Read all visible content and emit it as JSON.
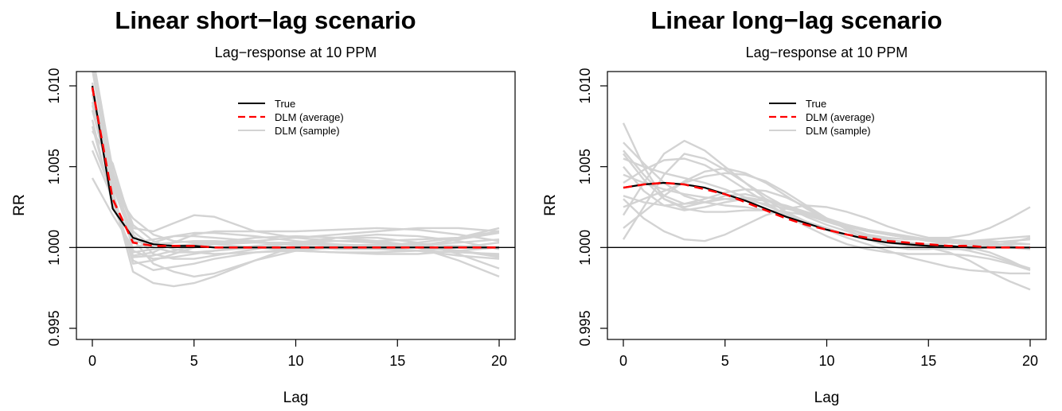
{
  "panels": [
    {
      "title": "Linear short−lag scenario",
      "chart_data": {
        "type": "line",
        "title": "Lag−response at 10 PPM",
        "xlabel": "Lag",
        "ylabel": "RR",
        "xlim": [
          0,
          20
        ],
        "ylim": [
          0.995,
          1.01
        ],
        "xticks": [
          0,
          5,
          10,
          15,
          20
        ],
        "xtick_labels": [
          "0",
          "5",
          "10",
          "15",
          "20"
        ],
        "yticks": [
          0.995,
          1.0,
          1.005,
          1.01
        ],
        "ytick_labels": [
          "0.995",
          "1.000",
          "1.005",
          "1.010"
        ],
        "reference_line": 1.0,
        "legend": {
          "position": "top-center",
          "entries": [
            "True",
            "DLM (average)",
            "DLM (sample)"
          ]
        },
        "colors": {
          "true": "#000000",
          "average": "#ff0000",
          "sample": "#d3d3d3"
        },
        "series": [
          {
            "name": "True",
            "style": "solid",
            "x": [
              0,
              1,
              2,
              3,
              4,
              5,
              6,
              8,
              10,
              12,
              14,
              16,
              18,
              20
            ],
            "y": [
              1.01,
              1.0024,
              1.0006,
              1.0002,
              1.0001,
              1.0001,
              1.0,
              1.0,
              1.0,
              1.0,
              1.0,
              1.0,
              1.0,
              1.0
            ]
          },
          {
            "name": "DLM (average)",
            "style": "dashed",
            "x": [
              0,
              1,
              2,
              3,
              4,
              5,
              6,
              8,
              10,
              12,
              14,
              16,
              18,
              20
            ],
            "y": [
              1.0099,
              1.003,
              1.0003,
              1.0001,
              1.0001,
              1.0001,
              1.0,
              1.0,
              1.0,
              1.0,
              1.0,
              1.0,
              1.0,
              1.0
            ]
          },
          {
            "name": "DLM (sample)",
            "group": true,
            "x": [
              0,
              1,
              2,
              3,
              4,
              5,
              6,
              8,
              10,
              12,
              14,
              16,
              18,
              20
            ],
            "lines": [
              [
                1.0112,
                1.0045,
                1.0012,
                1.001,
                1.0015,
                1.002,
                1.0019,
                1.001,
                1.0006,
                1.0004,
                1.0004,
                1.0005,
                1.0006,
                1.001
              ],
              [
                1.009,
                1.004,
                1.0005,
                0.999,
                0.9985,
                0.9982,
                0.9984,
                0.9992,
                1.0001,
                1.0006,
                1.0006,
                1.0003,
                0.9996,
                0.9987
              ],
              [
                1.0072,
                1.0052,
                1.001,
                1.0,
                0.9997,
                0.9997,
                0.9998,
                1.0,
                1.0,
                1.0,
                1.0001,
                1.0003,
                1.0006,
                1.0012
              ],
              [
                1.0066,
                1.0032,
                0.9985,
                0.9978,
                0.9976,
                0.9978,
                0.9982,
                0.9992,
                0.9998,
                1.0,
                0.9999,
                0.9998,
                0.9997,
                0.9996
              ],
              [
                1.0102,
                1.0028,
                0.9995,
                0.9997,
                1.0003,
                1.0008,
                1.001,
                1.001,
                1.001,
                1.0011,
                1.0012,
                1.0011,
                1.0008,
                1.0004
              ],
              [
                1.0043,
                1.002,
                1.0,
                1.0003,
                1.0007,
                1.0009,
                1.0009,
                1.0007,
                1.0004,
                1.0002,
                1.0,
                0.9998,
                0.9995,
                0.9993
              ],
              [
                1.012,
                1.0048,
                0.9998,
                0.9993,
                0.9994,
                0.9996,
                0.9998,
                1.0001,
                1.0003,
                1.0004,
                1.0003,
                1.0,
                0.9992,
                0.9982
              ],
              [
                1.0085,
                1.0036,
                1.0018,
                1.0008,
                1.0004,
                1.0003,
                1.0003,
                1.0004,
                1.0006,
                1.0008,
                1.001,
                1.0012,
                1.0012,
                1.001
              ],
              [
                1.0095,
                1.003,
                0.9992,
                0.9986,
                0.9988,
                0.999,
                0.9993,
                0.9997,
                0.9998,
                0.9997,
                0.9996,
                0.9996,
                0.9998,
                1.0
              ],
              [
                1.011,
                1.0038,
                1.0004,
                1.0002,
                1.0003,
                1.0004,
                1.0004,
                1.0003,
                1.0002,
                1.0001,
                1.0001,
                1.0002,
                1.0003,
                1.0005
              ],
              [
                1.0079,
                1.0026,
                0.9997,
                0.9999,
                1.0001,
                1.0002,
                1.0002,
                1.0,
                0.9998,
                0.9997,
                0.9997,
                0.9998,
                1.0,
                1.0003
              ],
              [
                1.0098,
                1.0042,
                1.0008,
                0.9996,
                0.9993,
                0.9993,
                0.9995,
                0.9999,
                1.0003,
                1.0006,
                1.0008,
                1.0007,
                1.0004,
                0.9999
              ],
              [
                1.006,
                1.003,
                1.0003,
                1.0005,
                1.0007,
                1.0007,
                1.0006,
                1.0004,
                1.0001,
                0.9999,
                0.9999,
                1.0001,
                1.0005,
                1.0009
              ],
              [
                1.0115,
                1.0035,
                0.999,
                0.9992,
                0.9996,
                1.0,
                1.0002,
                1.0003,
                1.0003,
                1.0002,
                1.0001,
                1.0,
                0.9998,
                0.9994
              ],
              [
                1.0088,
                1.0047,
                1.0014,
                1.0004,
                0.9999,
                0.9997,
                0.9996,
                0.9997,
                0.9999,
                1.0001,
                1.0002,
                1.0002,
                1.0001,
                1.0
              ],
              [
                1.0075,
                1.0028,
                0.9994,
                0.9995,
                0.9998,
                1.0001,
                1.0003,
                1.0006,
                1.0007,
                1.0006,
                1.0004,
                1.0001,
                0.9998,
                0.9995
              ]
            ]
          }
        ]
      }
    },
    {
      "title": "Linear long−lag scenario",
      "chart_data": {
        "type": "line",
        "title": "Lag−response at 10 PPM",
        "xlabel": "Lag",
        "ylabel": "RR",
        "xlim": [
          0,
          20
        ],
        "ylim": [
          0.995,
          1.01
        ],
        "xticks": [
          0,
          5,
          10,
          15,
          20
        ],
        "xtick_labels": [
          "0",
          "5",
          "10",
          "15",
          "20"
        ],
        "yticks": [
          0.995,
          1.0,
          1.005,
          1.01
        ],
        "ytick_labels": [
          "0.995",
          "1.000",
          "1.005",
          "1.010"
        ],
        "reference_line": 1.0,
        "legend": {
          "position": "top-center",
          "entries": [
            "True",
            "DLM (average)",
            "DLM (sample)"
          ]
        },
        "colors": {
          "true": "#000000",
          "average": "#ff0000",
          "sample": "#d3d3d3"
        },
        "series": [
          {
            "name": "True",
            "style": "solid",
            "x": [
              0,
              1,
              2,
              3,
              4,
              5,
              6,
              7,
              8,
              9,
              10,
              11,
              12,
              13,
              14,
              15,
              16,
              17,
              18,
              19,
              20
            ],
            "y": [
              1.0037,
              1.0039,
              1.004,
              1.0039,
              1.0037,
              1.0033,
              1.0029,
              1.0024,
              1.0019,
              1.0015,
              1.0011,
              1.0008,
              1.0005,
              1.0003,
              1.0002,
              1.0001,
              1.0001,
              1.0,
              1.0,
              1.0,
              1.0
            ]
          },
          {
            "name": "DLM (average)",
            "style": "dashed",
            "x": [
              0,
              1,
              2,
              3,
              4,
              5,
              6,
              7,
              8,
              9,
              10,
              11,
              12,
              13,
              14,
              15,
              16,
              17,
              18,
              19,
              20
            ],
            "y": [
              1.0037,
              1.0039,
              1.004,
              1.0039,
              1.0036,
              1.0033,
              1.0028,
              1.0023,
              1.0018,
              1.0014,
              1.0011,
              1.0008,
              1.0006,
              1.0004,
              1.0003,
              1.0002,
              1.0001,
              1.0001,
              1.0,
              1.0,
              1.0
            ]
          },
          {
            "name": "DLM (sample)",
            "group": true,
            "x": [
              0,
              1,
              2,
              3,
              4,
              5,
              6,
              7,
              8,
              9,
              10,
              11,
              12,
              13,
              14,
              15,
              16,
              17,
              18,
              19,
              20
            ],
            "lines": [
              [
                1.0077,
                1.005,
                1.003,
                1.0025,
                1.0028,
                1.0032,
                1.0033,
                1.003,
                1.0025,
                1.002,
                1.0016,
                1.0013,
                1.001,
                1.0008,
                1.0006,
                1.0004,
                1.0003,
                1.0002,
                1.0001,
                1.0,
                0.9999
              ],
              [
                1.0005,
                1.0025,
                1.0045,
                1.0058,
                1.0055,
                1.0048,
                1.004,
                1.0032,
                1.0025,
                1.0019,
                1.0014,
                1.001,
                1.0006,
                1.0003,
                1.0001,
                1.0,
                0.9999,
                0.9999,
                1.0,
                1.0003,
                1.0006
              ],
              [
                1.006,
                1.0045,
                1.0032,
                1.0027,
                1.0028,
                1.003,
                1.0031,
                1.0029,
                1.0025,
                1.0021,
                1.0016,
                1.0012,
                1.0008,
                1.0005,
                1.0003,
                1.0002,
                1.0001,
                1.0,
                0.9997,
                0.9992,
                0.9986
              ],
              [
                1.002,
                1.004,
                1.0058,
                1.0066,
                1.006,
                1.005,
                1.004,
                1.003,
                1.0022,
                1.0016,
                1.0011,
                1.0008,
                1.0006,
                1.0004,
                1.0002,
                1.0,
                0.9997,
                0.9992,
                0.9985,
                0.9979,
                0.9974
              ],
              [
                1.0045,
                1.004,
                1.0036,
                1.0033,
                1.0031,
                1.003,
                1.0029,
                1.0027,
                1.0024,
                1.0021,
                1.0017,
                1.0014,
                1.0011,
                1.0009,
                1.0007,
                1.0005,
                1.0004,
                1.0004,
                1.0005,
                1.0006,
                1.0007
              ],
              [
                1.003,
                1.0018,
                1.001,
                1.0005,
                1.0004,
                1.0008,
                1.0014,
                1.002,
                1.0024,
                1.0026,
                1.0025,
                1.0022,
                1.0018,
                1.0013,
                1.0009,
                1.0006,
                1.0006,
                1.0008,
                1.0012,
                1.0018,
                1.0025
              ],
              [
                1.0055,
                1.005,
                1.0046,
                1.0043,
                1.004,
                1.0036,
                1.0031,
                1.0026,
                1.0021,
                1.0016,
                1.0011,
                1.0006,
                1.0002,
                0.9998,
                0.9994,
                0.9991,
                0.9988,
                0.9986,
                0.9985,
                0.9984,
                0.9984
              ],
              [
                1.0025,
                1.003,
                1.0035,
                1.004,
                1.0044,
                1.0046,
                1.0045,
                1.0041,
                1.0034,
                1.0026,
                1.0018,
                1.0011,
                1.0005,
                1.0001,
                0.9999,
                0.9999,
                1.0,
                1.0001,
                1.0002,
                1.0002,
                1.0002
              ],
              [
                1.0065,
                1.0052,
                1.004,
                1.0032,
                1.0028,
                1.0026,
                1.0025,
                1.0023,
                1.002,
                1.0016,
                1.0012,
                1.0008,
                1.0005,
                1.0003,
                1.0002,
                1.0001,
                1.0,
                0.9998,
                0.9995,
                0.9991,
                0.9987
              ],
              [
                1.0012,
                1.0022,
                1.0032,
                1.0041,
                1.0047,
                1.0049,
                1.0046,
                1.004,
                1.0032,
                1.0024,
                1.0017,
                1.0012,
                1.0008,
                1.0006,
                1.0005,
                1.0005,
                1.0005,
                1.0004,
                1.0003,
                1.0001,
                0.9999
              ],
              [
                1.005,
                1.0035,
                1.0026,
                1.0023,
                1.0025,
                1.0028,
                1.003,
                1.0029,
                1.0026,
                1.0022,
                1.0018,
                1.0014,
                1.0011,
                1.0008,
                1.0006,
                1.0004,
                1.0003,
                1.0003,
                1.0003,
                1.0004,
                1.0005
              ],
              [
                1.004,
                1.0048,
                1.0054,
                1.0055,
                1.0051,
                1.0044,
                1.0036,
                1.0028,
                1.002,
                1.0013,
                1.0007,
                1.0002,
                0.9999,
                0.9997,
                0.9996,
                0.9996,
                0.9996,
                0.9995,
                0.9993,
                0.999,
                0.9986
              ],
              [
                1.0032,
                1.0028,
                1.0026,
                1.0027,
                1.003,
                1.0034,
                1.0036,
                1.0035,
                1.0031,
                1.0025,
                1.0018,
                1.0012,
                1.0007,
                1.0004,
                1.0002,
                1.0002,
                1.0003,
                1.0004,
                1.0004,
                1.0003,
                1.0002
              ],
              [
                1.0058,
                1.0042,
                1.003,
                1.0024,
                1.0022,
                1.0022,
                1.0023,
                1.0023,
                1.0022,
                1.002,
                1.0017,
                1.0014,
                1.0011,
                1.0008,
                1.0006,
                1.0004,
                1.0003,
                1.0002,
                1.0002,
                1.0002,
                1.0002
              ]
            ]
          }
        ]
      }
    }
  ]
}
